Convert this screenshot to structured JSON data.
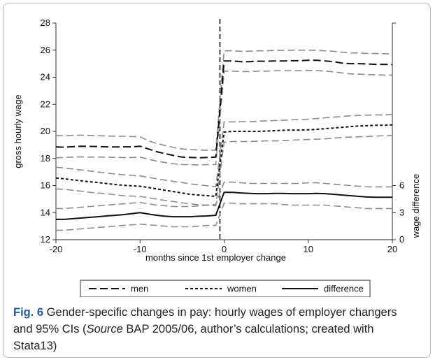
{
  "chart_data": {
    "type": "line",
    "xlabel": "months since 1st employer change",
    "ylabel": "gross hourly wage",
    "y2label": "wage difference",
    "xlim": [
      -20,
      20
    ],
    "ylim": [
      12,
      28
    ],
    "xticks": [
      -20,
      -10,
      0,
      10,
      20
    ],
    "yticks": [
      12,
      14,
      16,
      18,
      20,
      22,
      24,
      26,
      28
    ],
    "y2ticks": [
      0,
      3,
      6
    ],
    "y2_mapping": "wage difference 0 = 12, 3 = 14, 6 = 16 on the left axis",
    "vline_x": -0.5,
    "grid": false,
    "legend_position": "bottom",
    "series": [
      {
        "name": "men",
        "style": "long-dash",
        "axis": "left",
        "color": "#111111",
        "x": [
          -20,
          -19,
          -18,
          -17,
          -16,
          -15,
          -14,
          -13,
          -12,
          -11,
          -10,
          -9,
          -8,
          -7,
          -6,
          -5,
          -4,
          -3,
          -2,
          -1,
          0,
          1,
          2,
          3,
          4,
          5,
          6,
          7,
          8,
          9,
          10,
          11,
          12,
          13,
          14,
          15,
          16,
          17,
          18,
          19,
          20
        ],
        "values": [
          18.85,
          18.83,
          18.87,
          18.9,
          18.89,
          18.88,
          18.86,
          18.85,
          18.86,
          18.86,
          18.9,
          18.7,
          18.5,
          18.35,
          18.22,
          18.1,
          18.08,
          18.05,
          18.08,
          18.1,
          25.2,
          25.2,
          25.15,
          25.15,
          25.18,
          25.18,
          25.2,
          25.2,
          25.22,
          25.22,
          25.25,
          25.25,
          25.2,
          25.15,
          25.05,
          25.0,
          25.0,
          24.98,
          24.95,
          24.95,
          24.93
        ],
        "ci_upper": [
          19.7,
          19.68,
          19.7,
          19.72,
          19.7,
          19.68,
          19.66,
          19.65,
          19.64,
          19.62,
          19.6,
          19.3,
          19.1,
          18.95,
          18.82,
          18.7,
          18.66,
          18.62,
          18.6,
          18.62,
          25.95,
          25.95,
          25.92,
          25.92,
          25.95,
          25.95,
          25.98,
          25.98,
          26.0,
          26.0,
          26.0,
          25.98,
          25.95,
          25.92,
          25.85,
          25.8,
          25.78,
          25.76,
          25.75,
          25.74,
          25.72
        ],
        "ci_lower": [
          18.05,
          18.08,
          18.1,
          18.12,
          18.1,
          18.1,
          18.1,
          18.08,
          18.07,
          18.07,
          18.1,
          17.95,
          17.8,
          17.7,
          17.6,
          17.55,
          17.55,
          17.52,
          17.55,
          17.55,
          24.45,
          24.45,
          24.42,
          24.42,
          24.45,
          24.45,
          24.48,
          24.48,
          24.48,
          24.48,
          24.5,
          24.5,
          24.45,
          24.4,
          24.32,
          24.25,
          24.22,
          24.2,
          24.18,
          24.16,
          24.15
        ]
      },
      {
        "name": "women",
        "style": "short-dash",
        "axis": "left",
        "color": "#111111",
        "x": [
          -20,
          -19,
          -18,
          -17,
          -16,
          -15,
          -14,
          -13,
          -12,
          -11,
          -10,
          -9,
          -8,
          -7,
          -6,
          -5,
          -4,
          -3,
          -2,
          -1,
          0,
          1,
          2,
          3,
          4,
          5,
          6,
          7,
          8,
          9,
          10,
          11,
          12,
          13,
          14,
          15,
          16,
          17,
          18,
          19,
          20
        ],
        "values": [
          16.55,
          16.5,
          16.42,
          16.35,
          16.28,
          16.22,
          16.15,
          16.08,
          16.02,
          15.98,
          15.95,
          15.85,
          15.75,
          15.65,
          15.55,
          15.45,
          15.35,
          15.3,
          15.25,
          15.2,
          19.95,
          20.0,
          20.0,
          20.0,
          20.0,
          20.02,
          20.05,
          20.08,
          20.1,
          20.1,
          20.12,
          20.15,
          20.2,
          20.25,
          20.3,
          20.35,
          20.4,
          20.42,
          20.45,
          20.45,
          20.48
        ],
        "ci_upper": [
          17.35,
          17.3,
          17.22,
          17.15,
          17.08,
          17.0,
          16.92,
          16.85,
          16.8,
          16.75,
          16.72,
          16.6,
          16.5,
          16.4,
          16.3,
          16.22,
          16.12,
          16.05,
          15.98,
          15.92,
          20.7,
          20.7,
          20.72,
          20.72,
          20.75,
          20.78,
          20.8,
          20.82,
          20.85,
          20.88,
          20.9,
          20.95,
          21.0,
          21.05,
          21.1,
          21.15,
          21.18,
          21.2,
          21.22,
          21.22,
          21.25
        ],
        "ci_lower": [
          15.75,
          15.72,
          15.65,
          15.58,
          15.5,
          15.45,
          15.4,
          15.32,
          15.25,
          15.22,
          15.2,
          15.1,
          15.0,
          14.9,
          14.82,
          14.72,
          14.65,
          14.58,
          14.55,
          14.5,
          19.2,
          19.25,
          19.25,
          19.25,
          19.28,
          19.3,
          19.3,
          19.32,
          19.35,
          19.38,
          19.4,
          19.42,
          19.45,
          19.5,
          19.55,
          19.58,
          19.6,
          19.62,
          19.65,
          19.68,
          19.7
        ]
      },
      {
        "name": "difference",
        "style": "solid",
        "axis": "right",
        "color": "#111111",
        "x": [
          -20,
          -19,
          -18,
          -17,
          -16,
          -15,
          -14,
          -13,
          -12,
          -11,
          -10,
          -9,
          -8,
          -7,
          -6,
          -5,
          -4,
          -3,
          -2,
          -1,
          0,
          1,
          2,
          3,
          4,
          5,
          6,
          7,
          8,
          9,
          10,
          11,
          12,
          13,
          14,
          15,
          16,
          17,
          18,
          19,
          20
        ],
        "values": [
          2.25,
          2.25,
          2.33,
          2.4,
          2.48,
          2.55,
          2.63,
          2.7,
          2.78,
          2.88,
          3.0,
          2.85,
          2.7,
          2.6,
          2.55,
          2.55,
          2.55,
          2.6,
          2.63,
          2.7,
          5.25,
          5.25,
          5.18,
          5.13,
          5.1,
          5.1,
          5.13,
          5.13,
          5.1,
          5.1,
          5.1,
          5.13,
          5.1,
          5.03,
          4.95,
          4.88,
          4.8,
          4.73,
          4.7,
          4.7,
          4.7
        ],
        "ci_upper": [
          3.45,
          3.45,
          3.53,
          3.6,
          3.68,
          3.75,
          3.83,
          3.9,
          3.98,
          4.05,
          4.13,
          3.98,
          3.83,
          3.75,
          3.68,
          3.68,
          3.68,
          3.75,
          3.83,
          3.9,
          6.38,
          6.38,
          6.3,
          6.23,
          6.23,
          6.23,
          6.23,
          6.23,
          6.23,
          6.23,
          6.3,
          6.3,
          6.23,
          6.15,
          6.08,
          6.0,
          5.93,
          5.85,
          5.85,
          5.85,
          5.85
        ],
        "ci_lower": [
          1.05,
          1.05,
          1.13,
          1.2,
          1.28,
          1.35,
          1.43,
          1.5,
          1.58,
          1.65,
          1.73,
          1.65,
          1.58,
          1.5,
          1.43,
          1.43,
          1.43,
          1.5,
          1.58,
          1.58,
          4.05,
          4.05,
          3.98,
          3.98,
          3.98,
          3.98,
          3.98,
          3.9,
          3.83,
          3.83,
          3.83,
          3.83,
          3.83,
          3.75,
          3.68,
          3.6,
          3.53,
          3.45,
          3.45,
          3.45,
          3.45
        ]
      }
    ]
  },
  "caption": {
    "label": "Fig. 6",
    "text_a": "  Gender-specific changes in pay: hourly wages of employer changers and 95% CIs (",
    "source_word": "Source",
    "text_b": " BAP 2005/06, author’s calculations; created with Stata13)"
  },
  "colors": {
    "line": "#111111",
    "ci_band": "#8c8c8c",
    "caption_label": "#1f5fa8",
    "frame": "#b9b9b9"
  }
}
